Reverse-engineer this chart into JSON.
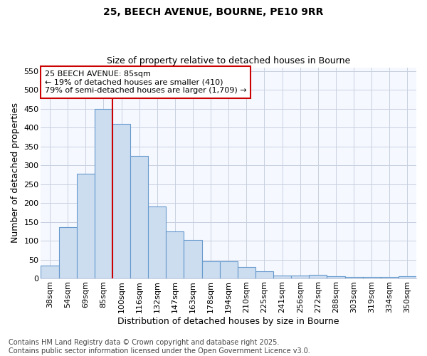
{
  "title_line1": "25, BEECH AVENUE, BOURNE, PE10 9RR",
  "title_line2": "Size of property relative to detached houses in Bourne",
  "xlabel": "Distribution of detached houses by size in Bourne",
  "ylabel": "Number of detached properties",
  "categories": [
    "38sqm",
    "54sqm",
    "69sqm",
    "85sqm",
    "100sqm",
    "116sqm",
    "132sqm",
    "147sqm",
    "163sqm",
    "178sqm",
    "194sqm",
    "210sqm",
    "225sqm",
    "241sqm",
    "256sqm",
    "272sqm",
    "288sqm",
    "303sqm",
    "319sqm",
    "334sqm",
    "350sqm"
  ],
  "values": [
    35,
    137,
    277,
    450,
    410,
    325,
    191,
    125,
    102,
    46,
    46,
    31,
    19,
    7,
    7,
    9,
    5,
    4,
    3,
    3,
    6
  ],
  "bar_color": "#ccddf0",
  "bar_edge_color": "#6699cc",
  "red_line_index": 3,
  "annotation_text_line1": "25 BEECH AVENUE: 85sqm",
  "annotation_text_line2": "← 19% of detached houses are smaller (410)",
  "annotation_text_line3": "79% of semi-detached houses are larger (1,709) →",
  "annotation_box_color": "#ffffff",
  "annotation_box_edge": "#cc0000",
  "ylim": [
    0,
    560
  ],
  "yticks": [
    0,
    50,
    100,
    150,
    200,
    250,
    300,
    350,
    400,
    450,
    500,
    550
  ],
  "background_color": "#ffffff",
  "plot_bg_color": "#f5f8ff",
  "grid_color": "#c8d0e0",
  "footer_text": "Contains HM Land Registry data © Crown copyright and database right 2025.\nContains public sector information licensed under the Open Government Licence v3.0.",
  "title_fontsize": 10,
  "subtitle_fontsize": 9,
  "axis_label_fontsize": 9,
  "tick_fontsize": 8,
  "annotation_fontsize": 8,
  "footer_fontsize": 7
}
